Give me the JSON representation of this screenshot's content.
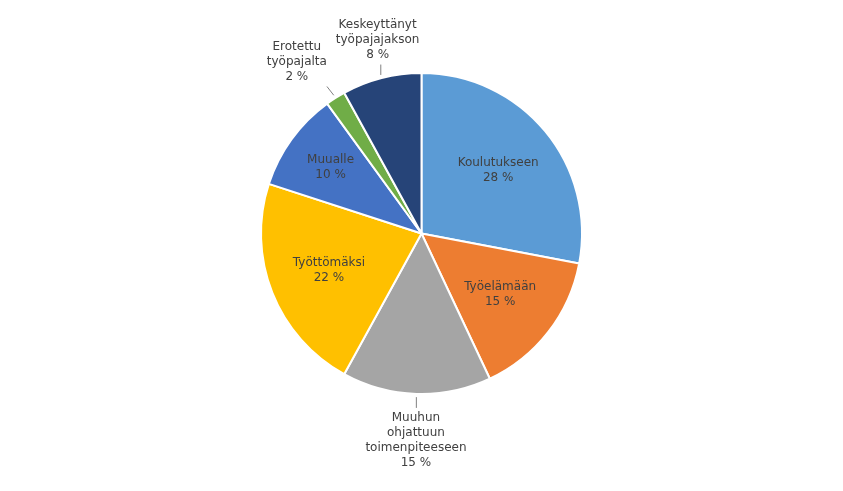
{
  "chart_data": {
    "type": "pie",
    "categories": [
      "Koulutukseen",
      "Työelämään",
      "Muuhun\nohjattuun\ntoimenpiteeseen",
      "Työttömäksi",
      "Muualle",
      "Erotettu\ntyöpajalta",
      "Keskeyttänyt\ntyöpajajakson"
    ],
    "values": [
      28,
      15,
      15,
      22,
      10,
      2,
      8
    ],
    "value_labels": [
      "28 %",
      "15 %",
      "15 %",
      "22 %",
      "10 %",
      "2 %",
      "8 %"
    ],
    "colors": [
      "#5B9BD5",
      "#ED7D31",
      "#A5A5A5",
      "#FFC000",
      "#4472C4",
      "#70AD47",
      "#264478"
    ],
    "data_labels": true
  }
}
